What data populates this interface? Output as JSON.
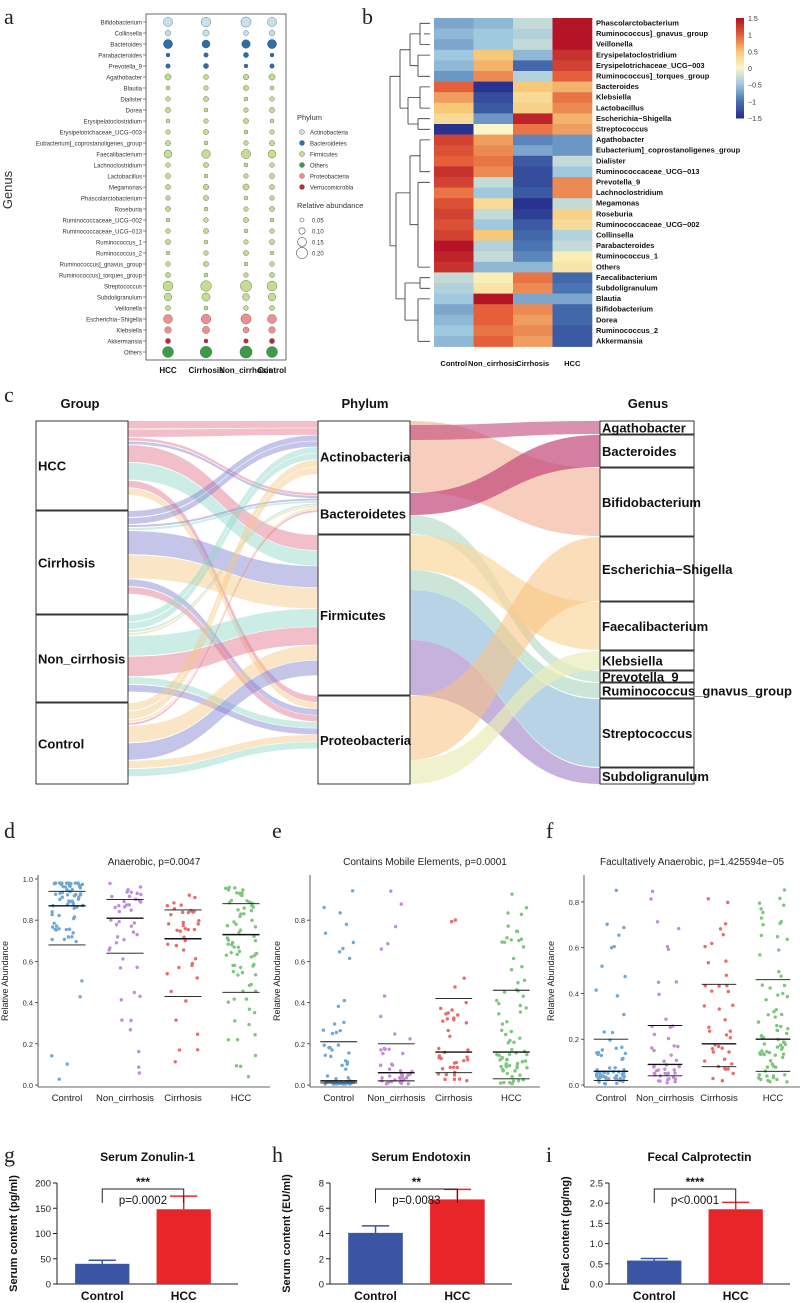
{
  "panels": {
    "a": "a",
    "b": "b",
    "c": "c",
    "d": "d",
    "e": "e",
    "f": "f",
    "g": "g",
    "h": "h",
    "i": "i"
  },
  "panel_a": {
    "y_title": "Genus",
    "groups": [
      "HCC",
      "Cirrhosis",
      "Non_cirrhosis",
      "Control"
    ],
    "genera": [
      "Bifidobacterium",
      "Collinsella",
      "Bacteroides",
      "Parabacteroides",
      "Prevotella_9",
      "Agathobacter",
      "Blautia",
      "Dialister",
      "Dorea",
      "Erysipelatoclostridium",
      "Erysipelotrichaceae_UCG−003",
      "Eubacterium]_coprostanoligenes_group",
      "Faecalibacterium",
      "Lachnoclostridium",
      "Lactobacillus",
      "Megamonas",
      "Phascolarctobacterium",
      "Roseburia",
      "Ruminococcaceae_UCG−002",
      "Ruminococcaceae_UCG−013",
      "Ruminococcus_1",
      "Ruminococcus_2",
      "Ruminococcus]_gnavus_group",
      "Ruminococcus]_torques_group",
      "Streptococcus",
      "Subdoligranulum",
      "Veillonella",
      "Escherichia−Shigella",
      "Klebsiella",
      "Akkermansia",
      "Others"
    ],
    "phylum_of_genus": [
      "A",
      "A",
      "B",
      "B",
      "B",
      "F",
      "F",
      "F",
      "F",
      "F",
      "F",
      "F",
      "F",
      "F",
      "F",
      "F",
      "F",
      "F",
      "F",
      "F",
      "F",
      "F",
      "F",
      "F",
      "F",
      "F",
      "F",
      "P",
      "P",
      "V",
      "O"
    ],
    "legend_phylum_title": "Phylum",
    "legend_phylum": [
      {
        "name": "Actinobacteria",
        "color": "#c6e2ee"
      },
      {
        "name": "Bacteroidetes",
        "color": "#2a6fa8"
      },
      {
        "name": "Firmicutes",
        "color": "#c5dd8e"
      },
      {
        "name": "Others",
        "color": "#3c9b46"
      },
      {
        "name": "Proteobacteria",
        "color": "#ef8f8f"
      },
      {
        "name": "Verrucomicrobia",
        "color": "#c4272e"
      }
    ],
    "legend_size_title": "Relative abundance",
    "legend_size": [
      "0.05",
      "0.10",
      "0.15",
      "0.20"
    ]
  },
  "panel_b": {
    "columns": [
      "Control",
      "Non_cirrhosis",
      "Cirrhosis",
      "HCC"
    ],
    "rows": [
      "Phascolarctobacterium",
      "Ruminococcus]_gnavus_group",
      "Veillonella",
      "Erysipelatoclostridium",
      "Erysipelotrichaceae_UCG−003",
      "Ruminococcus]_torques_group",
      "Bacteroides",
      "Klebsiella",
      "Lactobacillus",
      "Escherichia−Shigella",
      "Streptococcus",
      "Agathobacter",
      "Eubacterium]_coprostanoligenes_group",
      "Dialister",
      "Ruminococcaceae_UCG−013",
      "Prevotella_9",
      "Lachnoclostridium",
      "Megamonas",
      "Roseburia",
      "Ruminococcaceae_UCG−002",
      "Collinsella",
      "Parabacteroides",
      "Ruminococcus_1",
      "Others",
      "Faecalibacterium",
      "Subdoligranulum",
      "Blautia",
      "Bifidobacterium",
      "Dorea",
      "Ruminococcus_2",
      "Akkermansia"
    ],
    "values": [
      [
        -0.7,
        -0.6,
        -0.3,
        1.5
      ],
      [
        -0.6,
        -0.5,
        -0.4,
        1.5
      ],
      [
        -0.7,
        -0.5,
        -0.3,
        1.5
      ],
      [
        -0.5,
        0.5,
        -0.6,
        1.3
      ],
      [
        -0.6,
        0.6,
        -1.1,
        1.2
      ],
      [
        -0.8,
        0.8,
        -0.4,
        1.0
      ],
      [
        1.0,
        -1.5,
        0.5,
        0.6
      ],
      [
        0.7,
        -1.3,
        0.3,
        0.9
      ],
      [
        0.5,
        -1.2,
        0.4,
        0.8
      ],
      [
        0.3,
        -0.8,
        1.4,
        0.6
      ],
      [
        -1.5,
        0.0,
        0.9,
        0.7
      ],
      [
        1.2,
        0.7,
        -0.9,
        -0.8
      ],
      [
        1.1,
        0.8,
        -0.7,
        -0.8
      ],
      [
        1.0,
        0.9,
        -1.2,
        -0.3
      ],
      [
        1.3,
        0.8,
        -1.3,
        -0.5
      ],
      [
        1.2,
        -0.3,
        -1.3,
        0.8
      ],
      [
        0.9,
        -0.5,
        -1.2,
        0.8
      ],
      [
        1.1,
        0.3,
        -1.5,
        -0.3
      ],
      [
        1.2,
        -0.3,
        -1.4,
        0.4
      ],
      [
        1.1,
        -0.5,
        -1.2,
        0.3
      ],
      [
        1.2,
        0.5,
        -1.1,
        -0.4
      ],
      [
        1.5,
        -0.4,
        -1.0,
        -0.3
      ],
      [
        1.4,
        -0.3,
        -0.9,
        0.1
      ],
      [
        1.3,
        -0.6,
        -0.6,
        0.2
      ],
      [
        -0.3,
        0.1,
        0.9,
        -1.1
      ],
      [
        -0.4,
        0.2,
        0.8,
        -1.0
      ],
      [
        -0.5,
        1.5,
        -0.7,
        -0.7
      ],
      [
        -0.7,
        1.0,
        0.8,
        -1.1
      ],
      [
        -0.6,
        1.0,
        0.7,
        -1.1
      ],
      [
        -0.5,
        0.9,
        0.8,
        -1.2
      ],
      [
        -0.6,
        1.0,
        0.7,
        -1.2
      ]
    ],
    "colorbar_ticks": [
      "1.5",
      "1",
      "0.5",
      "0",
      "−0.5",
      "−1",
      "−1.5"
    ]
  },
  "panel_c": {
    "headers": {
      "group": "Group",
      "phylum": "Phylum",
      "genus": "Genus"
    },
    "groups": [
      "HCC",
      "Cirrhosis",
      "Non_cirrhosis",
      "Control"
    ],
    "phyla": [
      "Actinobacteria",
      "Bacteroidetes",
      "Firmicutes",
      "Proteobacteria"
    ],
    "genera": [
      "Agathobacter",
      "Bacteroides",
      "Bifidobacterium",
      "Escherichia−Shigella",
      "Faecalibacterium",
      "Klebsiella",
      "Prevotella_9",
      "Ruminococcus_gnavus_group",
      "Streptococcus",
      "Subdoligranulum"
    ],
    "colors": {
      "HCC": "#e06f8a",
      "Cirrhosis": "#7f7fd0",
      "Non_cirrhosis": "#8fd8c8",
      "Control": "#f5c781",
      "Actinobacteria": "#f0a489",
      "Bacteroidetes": "#c2477a",
      "Firmicutes": "#f9d79e",
      "Proteobacteria": "#bcd7e8",
      "gn_Faecalibacterium": "#a9d6c0",
      "gn_Streptococcus": "#93bcd9",
      "gn_Subdoligranulum": "#b39ad1",
      "gn_Agathobacter": "#e6c3df",
      "gn_Escherichia": "#f9c17f",
      "gn_Klebsiella": "#a9d8d0"
    }
  },
  "panel_d": {
    "title": "Anaerobic, p=0.0047",
    "ylabel": "Relative Abundance",
    "categories": [
      "Control",
      "Non_cirrhosis",
      "Cirrhosis",
      "HCC"
    ],
    "ylim": [
      0,
      1.0
    ],
    "yticks": [
      "0.0",
      "0.2",
      "0.4",
      "0.6",
      "0.8",
      "1.0"
    ],
    "quartiles": [
      [
        0.68,
        0.87,
        0.94
      ],
      [
        0.64,
        0.81,
        0.9
      ],
      [
        0.43,
        0.71,
        0.85
      ],
      [
        0.45,
        0.73,
        0.88
      ]
    ]
  },
  "panel_e": {
    "title": "Contains Mobile Elements, p=0.0001",
    "ylabel": "Relative Abundance",
    "categories": [
      "Control",
      "Non_cirrhosis",
      "Cirrhosis",
      "HCC"
    ],
    "ylim": [
      0,
      1.0
    ],
    "yticks": [
      "0.0",
      "0.2",
      "0.4",
      "0.6",
      "0.8"
    ],
    "quartiles": [
      [
        0.01,
        0.02,
        0.21
      ],
      [
        0.02,
        0.06,
        0.2
      ],
      [
        0.06,
        0.16,
        0.42
      ],
      [
        0.03,
        0.16,
        0.46
      ]
    ]
  },
  "panel_f": {
    "title": "Facultatively Anaerobic, p=1.425594e−05",
    "ylabel": "Relative Abundance",
    "categories": [
      "Control",
      "Non_cirrhosis",
      "Cirrhosis",
      "HCC"
    ],
    "ylim": [
      0,
      0.9
    ],
    "yticks": [
      "0.0",
      "0.2",
      "0.4",
      "0.6",
      "0.8"
    ],
    "quartiles": [
      [
        0.02,
        0.06,
        0.2
      ],
      [
        0.04,
        0.09,
        0.26
      ],
      [
        0.08,
        0.18,
        0.44
      ],
      [
        0.06,
        0.2,
        0.46
      ]
    ]
  },
  "chart_data": [
    {
      "type": "bar",
      "panel": "g",
      "title": "Serum Zonulin-1",
      "categories": [
        "Control",
        "HCC"
      ],
      "values": [
        40,
        148
      ],
      "errors": [
        7,
        26
      ],
      "ylabel": "Serum content (pg/ml)",
      "ylim": [
        0,
        200
      ],
      "yticks": [
        "0",
        "50",
        "100",
        "150",
        "200"
      ],
      "annotation": {
        "stars": "***",
        "p": "p=0.0002"
      }
    },
    {
      "type": "bar",
      "panel": "h",
      "title": "Serum Endotoxin",
      "categories": [
        "Control",
        "HCC"
      ],
      "values": [
        4.05,
        6.7
      ],
      "errors": [
        0.55,
        0.8
      ],
      "ylabel": "Serum content (EU/ml)",
      "ylim": [
        0,
        8
      ],
      "yticks": [
        "0",
        "2",
        "4",
        "6",
        "8"
      ],
      "annotation": {
        "stars": "**",
        "p": "p=0.0083"
      }
    },
    {
      "type": "bar",
      "panel": "i",
      "title": "Fecal Calprotectin",
      "categories": [
        "Control",
        "HCC"
      ],
      "values": [
        0.58,
        1.85
      ],
      "errors": [
        0.05,
        0.17
      ],
      "ylabel": "Fecal content (pg/mg)",
      "ylim": [
        0,
        2.5
      ],
      "yticks": [
        "0.0",
        "0.5",
        "1.0",
        "1.5",
        "2.0",
        "2.5"
      ],
      "annotation": {
        "stars": "****",
        "p": "p<0.0001"
      }
    }
  ],
  "colors": {
    "control_bar": "#3a55a4",
    "hcc_bar": "#e8262a"
  }
}
